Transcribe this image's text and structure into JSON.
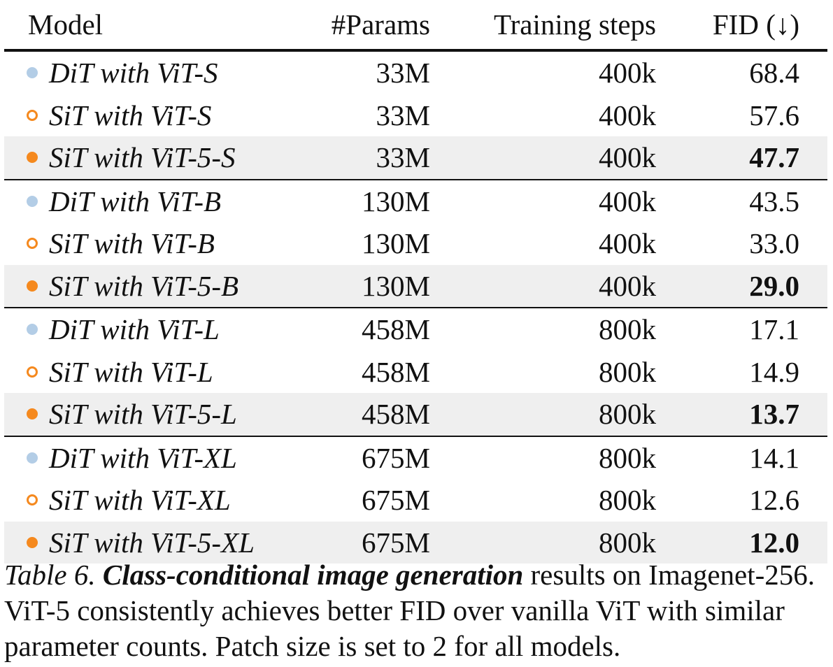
{
  "table": {
    "headers": {
      "model": "Model",
      "params": "#Params",
      "steps": "Training steps",
      "fid": "FID (↓)"
    },
    "marker_colors": {
      "dit": "#b3cde6",
      "sit": "#f5891e",
      "sit5": "#f5891e"
    },
    "groups": [
      [
        {
          "marker": "dit",
          "model": "DiT with ViT-S",
          "params": "33M",
          "steps": "400k",
          "fid": "68.4"
        },
        {
          "marker": "sit",
          "model": "SiT with ViT-S",
          "params": "33M",
          "steps": "400k",
          "fid": "57.6"
        },
        {
          "marker": "sit5",
          "model": "SiT with ViT-5-S",
          "params": "33M",
          "steps": "400k",
          "fid": "47.7"
        }
      ],
      [
        {
          "marker": "dit",
          "model": "DiT with ViT-B",
          "params": "130M",
          "steps": "400k",
          "fid": "43.5"
        },
        {
          "marker": "sit",
          "model": "SiT with ViT-B",
          "params": "130M",
          "steps": "400k",
          "fid": "33.0"
        },
        {
          "marker": "sit5",
          "model": "SiT with ViT-5-B",
          "params": "130M",
          "steps": "400k",
          "fid": "29.0"
        }
      ],
      [
        {
          "marker": "dit",
          "model": "DiT with ViT-L",
          "params": "458M",
          "steps": "800k",
          "fid": "17.1"
        },
        {
          "marker": "sit",
          "model": "SiT with ViT-L",
          "params": "458M",
          "steps": "800k",
          "fid": "14.9"
        },
        {
          "marker": "sit5",
          "model": "SiT with ViT-5-L",
          "params": "458M",
          "steps": "800k",
          "fid": "13.7"
        }
      ],
      [
        {
          "marker": "dit",
          "model": "DiT with ViT-XL",
          "params": "675M",
          "steps": "800k",
          "fid": "14.1"
        },
        {
          "marker": "sit",
          "model": "SiT with ViT-XL",
          "params": "675M",
          "steps": "800k",
          "fid": "12.6"
        },
        {
          "marker": "sit5",
          "model": "SiT with ViT-5-XL",
          "params": "675M",
          "steps": "800k",
          "fid": "12.0"
        }
      ]
    ]
  },
  "caption": {
    "label": "Table 6.",
    "title": "Class-conditional image generation",
    "text": " results on Imagenet-256. ViT-5 consistently achieves better FID over vanilla ViT with similar parameter counts. Patch size is set to 2 for all models."
  }
}
